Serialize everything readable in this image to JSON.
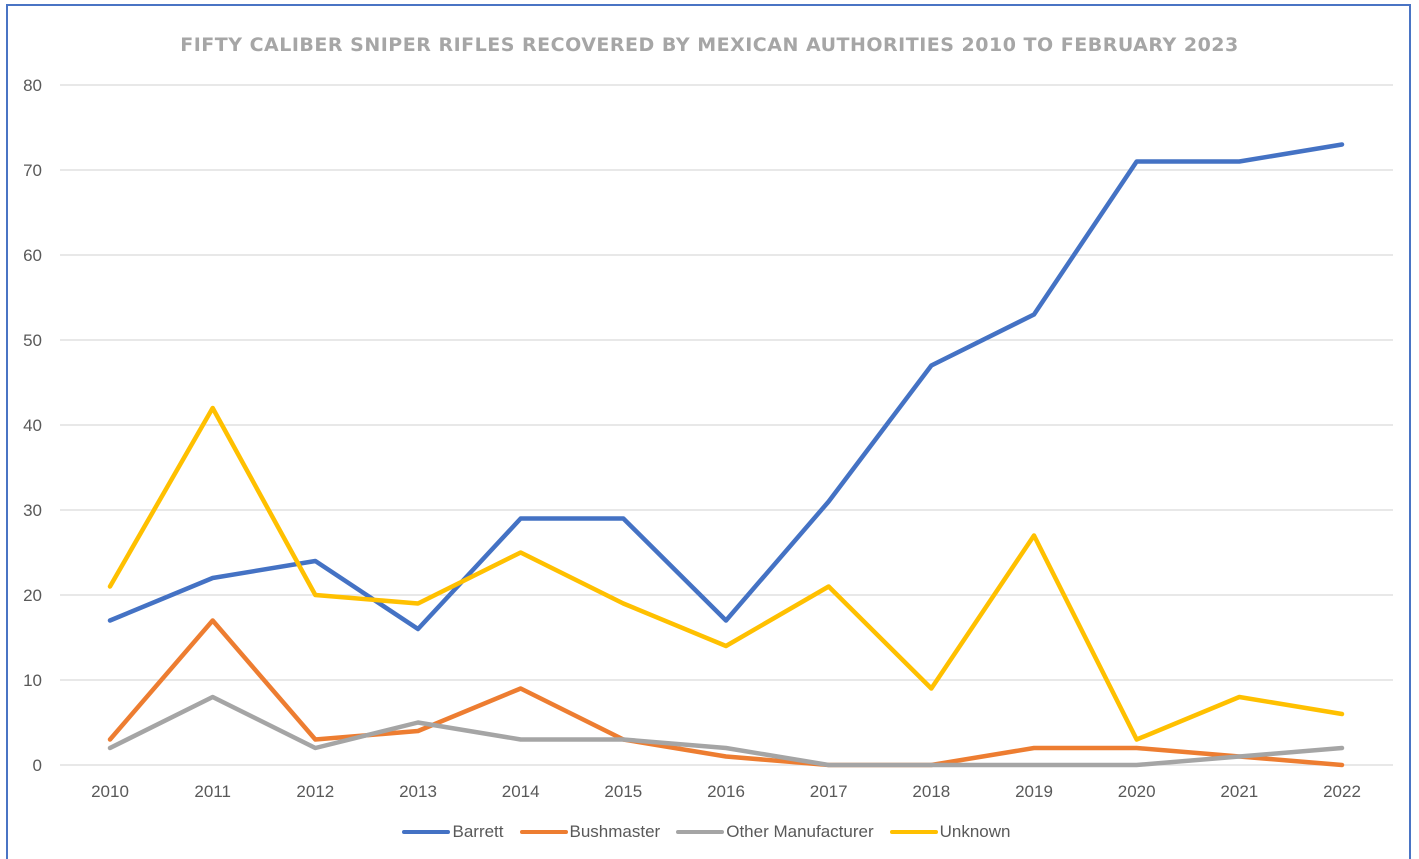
{
  "chart_data": {
    "type": "line",
    "title": "FIFTY CALIBER SNIPER RIFLES RECOVERED BY MEXICAN AUTHORITIES 2010 TO FEBRUARY 2023",
    "xlabel": "",
    "ylabel": "",
    "categories": [
      "2010",
      "2011",
      "2012",
      "2013",
      "2014",
      "2015",
      "2016",
      "2017",
      "2018",
      "2019",
      "2020",
      "2021",
      "2022"
    ],
    "ylim": [
      0,
      80
    ],
    "yticks": [
      0,
      10,
      20,
      30,
      40,
      50,
      60,
      70,
      80
    ],
    "grid": true,
    "legend_position": "bottom",
    "series": [
      {
        "name": "Barrett",
        "color": "#4472c4",
        "values": [
          17,
          22,
          24,
          16,
          29,
          29,
          17,
          31,
          47,
          53,
          71,
          71,
          73
        ]
      },
      {
        "name": "Bushmaster",
        "color": "#ed7d31",
        "values": [
          3,
          17,
          3,
          4,
          9,
          3,
          1,
          0,
          0,
          2,
          2,
          1,
          0
        ]
      },
      {
        "name": "Other Manufacturer",
        "color": "#a5a5a5",
        "values": [
          2,
          8,
          2,
          5,
          3,
          3,
          2,
          0,
          0,
          0,
          0,
          1,
          2
        ]
      },
      {
        "name": "Unknown",
        "color": "#ffc000",
        "values": [
          21,
          42,
          20,
          19,
          25,
          19,
          14,
          21,
          9,
          27,
          3,
          8,
          6
        ]
      }
    ]
  }
}
